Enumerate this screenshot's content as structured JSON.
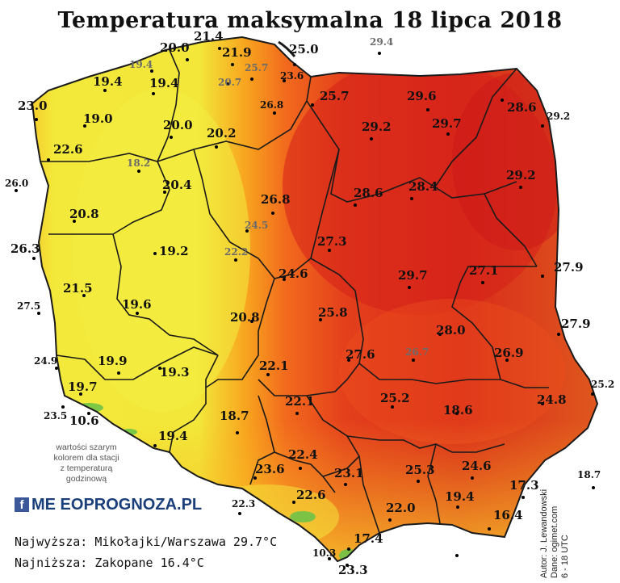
{
  "title": "Temperatura maksymalna 18 lipca 2018",
  "note_lines": [
    "wartości szarym",
    "kolorem dla stacji",
    "z temperaturą",
    "godzinową"
  ],
  "logo": {
    "icon": "f",
    "text": "ME EOPROGNOZA.PL"
  },
  "extremes": {
    "max_label": "Najwyższa: Mikołajki/Warszawa 29.7°C",
    "min_label": "Najniższa: Zakopane 16.4°C"
  },
  "credits": {
    "author": "Autor: J. Lewandowski",
    "data": "Dane: ogimet.com",
    "hours": "6 - 18 UTC"
  },
  "colors": {
    "cool": "#f2ee3a",
    "mild": "#f9b21e",
    "warm": "#f4771c",
    "hot": "#e23a1c",
    "hottest": "#d11a1a",
    "mountains": "#66c24a",
    "gray_text": "#6b6b6b"
  },
  "stations": [
    {
      "v": "20.0"
    },
    {
      "v": "21.4"
    },
    {
      "v": "19.4"
    },
    {
      "v": "21.9"
    },
    {
      "v": "25.7"
    },
    {
      "v": "25.0"
    },
    {
      "v": "29.4"
    },
    {
      "v": "19.4"
    },
    {
      "v": "19.4"
    },
    {
      "v": "20.7"
    },
    {
      "v": "23.6"
    },
    {
      "v": "23.0"
    },
    {
      "v": "26.8"
    },
    {
      "v": "25.7"
    },
    {
      "v": "29.6"
    },
    {
      "v": "28.6"
    },
    {
      "v": "29.2"
    },
    {
      "v": "19.0"
    },
    {
      "v": "20.0"
    },
    {
      "v": "29.2"
    },
    {
      "v": "29.7"
    },
    {
      "v": "20.2"
    },
    {
      "v": "22.6"
    },
    {
      "v": "18.2"
    },
    {
      "v": "26.0"
    },
    {
      "v": "20.4"
    },
    {
      "v": "28.6"
    },
    {
      "v": "28.4"
    },
    {
      "v": "29.2"
    },
    {
      "v": "26.8"
    },
    {
      "v": "20.8"
    },
    {
      "v": "24.5"
    },
    {
      "v": "26.3"
    },
    {
      "v": "27.3"
    },
    {
      "v": "19.2"
    },
    {
      "v": "22.2"
    },
    {
      "v": "27.9"
    },
    {
      "v": "24.6"
    },
    {
      "v": "29.7"
    },
    {
      "v": "27.1"
    },
    {
      "v": "21.5"
    },
    {
      "v": "27.5"
    },
    {
      "v": "19.6"
    },
    {
      "v": "25.8"
    },
    {
      "v": "20.8"
    },
    {
      "v": "27.9"
    },
    {
      "v": "28.0"
    },
    {
      "v": "24.9"
    },
    {
      "v": "19.9"
    },
    {
      "v": "27.6"
    },
    {
      "v": "26.7"
    },
    {
      "v": "26.9"
    },
    {
      "v": "19.3"
    },
    {
      "v": "22.1"
    },
    {
      "v": "19.7"
    },
    {
      "v": "25.2"
    },
    {
      "v": "25.2"
    },
    {
      "v": "23.5"
    },
    {
      "v": "10.6"
    },
    {
      "v": "22.1"
    },
    {
      "v": "24.8"
    },
    {
      "v": "18.6"
    },
    {
      "v": "18.7"
    },
    {
      "v": "19.4"
    },
    {
      "v": "22.4"
    },
    {
      "v": "23.1"
    },
    {
      "v": "25.3"
    },
    {
      "v": "24.6"
    },
    {
      "v": "18.7"
    },
    {
      "v": "23.6"
    },
    {
      "v": "17.3"
    },
    {
      "v": "22.6"
    },
    {
      "v": "19.4"
    },
    {
      "v": "22.3"
    },
    {
      "v": "22.0"
    },
    {
      "v": "16.4"
    },
    {
      "v": "17.4"
    },
    {
      "v": "10.3"
    },
    {
      "v": "23.3"
    }
  ]
}
